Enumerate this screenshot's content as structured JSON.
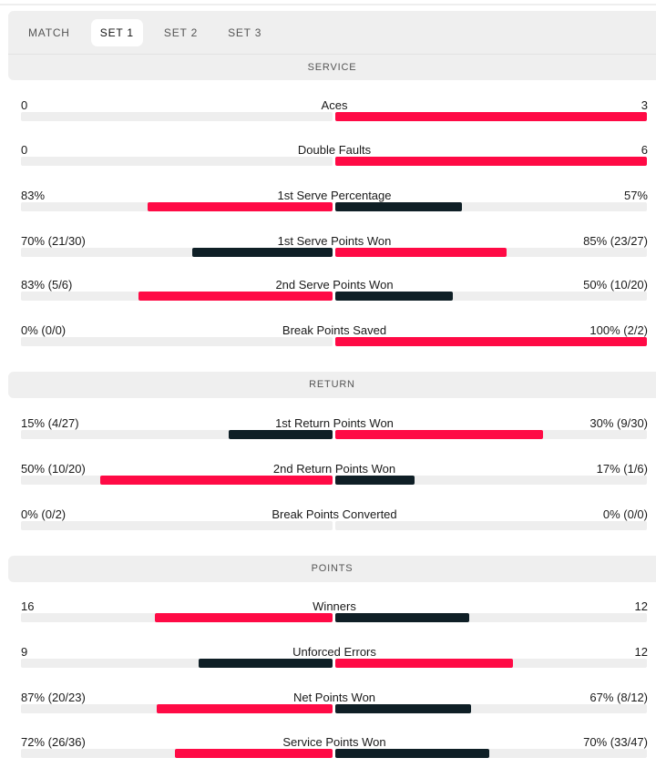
{
  "tabs": [
    {
      "label": "MATCH",
      "active": false
    },
    {
      "label": "SET 1",
      "active": true
    },
    {
      "label": "SET 2",
      "active": false
    },
    {
      "label": "SET 3",
      "active": false
    }
  ],
  "colors": {
    "leader": "#ff0a45",
    "trailer": "#0f1f26",
    "track": "#eeeeee"
  },
  "sections": [
    {
      "title": "SERVICE",
      "rows": [
        {
          "label": "Aces",
          "left": "0",
          "right": "3",
          "lv": 0,
          "rv": 3
        },
        {
          "label": "Double Faults",
          "left": "0",
          "right": "6",
          "lv": 0,
          "rv": 6
        },
        {
          "label": "1st Serve Percentage",
          "left": "83%",
          "right": "57%",
          "lv": 83,
          "rv": 57
        },
        {
          "label": "1st Serve Points Won",
          "left": "70% (21/30)",
          "right": "85% (23/27)",
          "lv": 70,
          "rv": 85
        },
        {
          "label": "2nd Serve Points Won",
          "left": "83% (5/6)",
          "right": "50% (10/20)",
          "lv": 83,
          "rv": 50
        },
        {
          "label": "Break Points Saved",
          "left": "0% (0/0)",
          "right": "100% (2/2)",
          "lv": 0,
          "rv": 100
        }
      ]
    },
    {
      "title": "RETURN",
      "rows": [
        {
          "label": "1st Return Points Won",
          "left": "15% (4/27)",
          "right": "30% (9/30)",
          "lv": 15,
          "rv": 30
        },
        {
          "label": "2nd Return Points Won",
          "left": "50% (10/20)",
          "right": "17% (1/6)",
          "lv": 50,
          "rv": 17
        },
        {
          "label": "Break Points Converted",
          "left": "0% (0/2)",
          "right": "0% (0/0)",
          "lv": 0,
          "rv": 0
        }
      ]
    },
    {
      "title": "POINTS",
      "rows": [
        {
          "label": "Winners",
          "left": "16",
          "right": "12",
          "lv": 16,
          "rv": 12
        },
        {
          "label": "Unforced Errors",
          "left": "9",
          "right": "12",
          "lv": 9,
          "rv": 12
        },
        {
          "label": "Net Points Won",
          "left": "87% (20/23)",
          "right": "67% (8/12)",
          "lv": 87,
          "rv": 67
        },
        {
          "label": "Service Points Won",
          "left": "72% (26/36)",
          "right": "70% (33/47)",
          "lv": 72,
          "rv": 70
        }
      ]
    }
  ]
}
